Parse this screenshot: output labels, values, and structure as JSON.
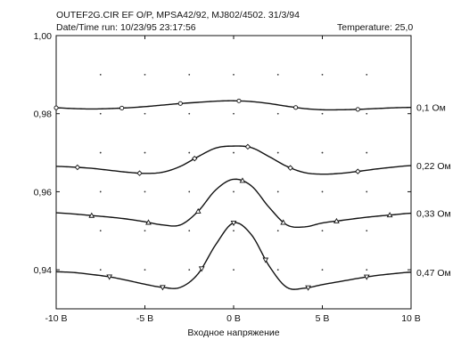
{
  "header": {
    "line1": "OUTEF2G.CIR  EF O/P, MPSA42/92, MJ802/4502.  31/3/94",
    "line2": "Date/Time run:  10/23/95  23:17:56",
    "temperature": "Temperature: 25,0"
  },
  "chart_data": {
    "type": "line",
    "title": "",
    "xlabel": "Входное напряжение",
    "ylabel": "",
    "xlim": [
      -10,
      10
    ],
    "ylim": [
      0.93,
      1.0
    ],
    "x_ticks": [
      -10,
      -5,
      0,
      5,
      10
    ],
    "x_tick_labels": [
      "-10 В",
      "-5 В",
      "0 В",
      "5 В",
      "10 В"
    ],
    "y_ticks": [
      0.94,
      0.96,
      0.98,
      1.0
    ],
    "y_tick_labels": [
      "0,94",
      "0,96",
      "0,98",
      "1,00"
    ],
    "grid": "dotted",
    "series": [
      {
        "name": "0,1 Ом",
        "marker": "circle",
        "x": [
          -10,
          -9,
          -8,
          -7,
          -6,
          -5,
          -4,
          -3,
          -2,
          -1,
          0,
          1,
          2,
          3,
          4,
          5,
          6,
          7,
          8,
          9,
          10
        ],
        "values": [
          0.9815,
          0.9813,
          0.9812,
          0.9813,
          0.9815,
          0.9818,
          0.9822,
          0.9826,
          0.9829,
          0.9832,
          0.9833,
          0.9831,
          0.9826,
          0.9819,
          0.9813,
          0.981,
          0.981,
          0.9811,
          0.9813,
          0.9815,
          0.9816
        ],
        "marker_x": [
          -10,
          -6.3,
          -3,
          0.3,
          3.5,
          7
        ]
      },
      {
        "name": "0,22 Ом",
        "marker": "diamond",
        "x": [
          -10,
          -9,
          -8,
          -7,
          -6,
          -5,
          -4,
          -3,
          -2,
          -1,
          0,
          1,
          2,
          3,
          4,
          5,
          6,
          7,
          8,
          9,
          10
        ],
        "values": [
          0.9665,
          0.9663,
          0.966,
          0.9655,
          0.965,
          0.9647,
          0.965,
          0.9665,
          0.969,
          0.9712,
          0.9717,
          0.9713,
          0.969,
          0.9665,
          0.9649,
          0.9645,
          0.9647,
          0.9652,
          0.9658,
          0.9663,
          0.9667
        ],
        "marker_x": [
          -8.8,
          -5.3,
          -2.2,
          0.8,
          3.2,
          7
        ]
      },
      {
        "name": "0,33 Ом",
        "marker": "triangle",
        "x": [
          -10,
          -9,
          -8,
          -7,
          -6,
          -5,
          -4,
          -3,
          -2,
          -1,
          0,
          1,
          2,
          3,
          4,
          5,
          6,
          7,
          8,
          9,
          10
        ],
        "values": [
          0.9546,
          0.9543,
          0.9539,
          0.9535,
          0.953,
          0.9523,
          0.9515,
          0.9515,
          0.955,
          0.9605,
          0.9632,
          0.9615,
          0.956,
          0.9515,
          0.951,
          0.952,
          0.9526,
          0.9532,
          0.9537,
          0.9541,
          0.9545
        ],
        "marker_x": [
          -8,
          -4.8,
          -2,
          0.5,
          2.8,
          5.8,
          8.8
        ]
      },
      {
        "name": "0,47 Ом",
        "marker": "inverted-triangle",
        "x": [
          -10,
          -9,
          -8,
          -7,
          -6,
          -5,
          -4,
          -3,
          -2,
          -1,
          0,
          1,
          2,
          3,
          4,
          5,
          6,
          7,
          8,
          9,
          10
        ],
        "values": [
          0.9395,
          0.9393,
          0.9388,
          0.9382,
          0.9373,
          0.9363,
          0.9355,
          0.9355,
          0.939,
          0.9465,
          0.952,
          0.949,
          0.941,
          0.9355,
          0.9353,
          0.9362,
          0.937,
          0.9378,
          0.9385,
          0.939,
          0.9394
        ],
        "marker_x": [
          -7,
          -4,
          -1.8,
          0,
          1.8,
          4.2,
          7.5
        ]
      }
    ]
  }
}
